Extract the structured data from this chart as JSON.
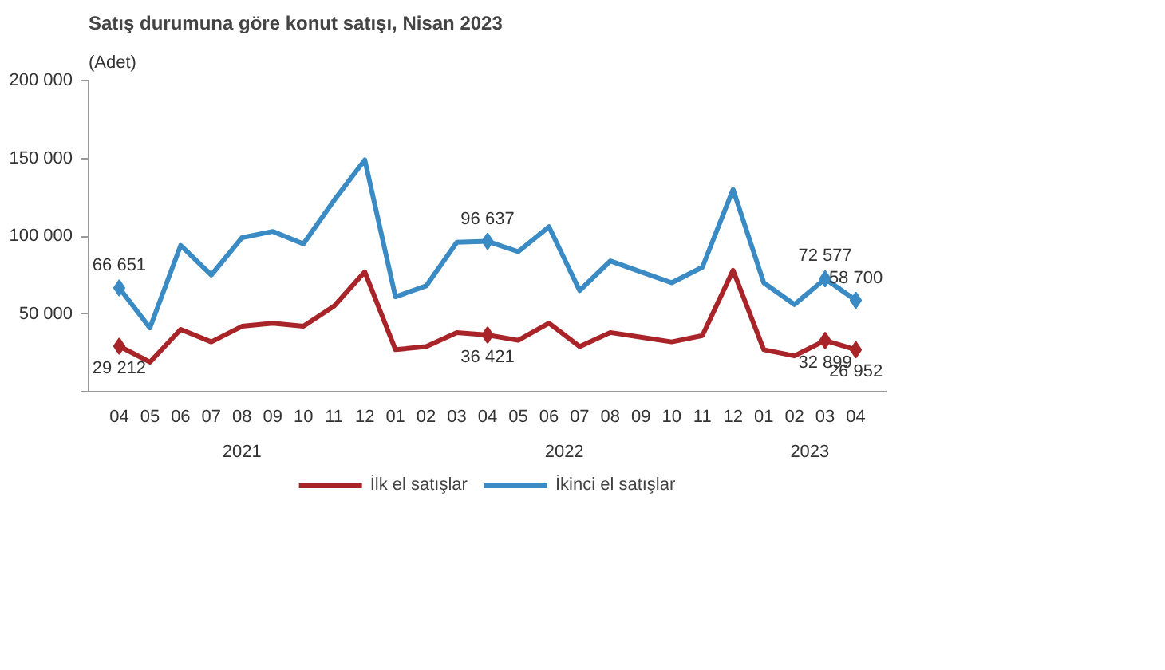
{
  "chart_data": {
    "type": "line",
    "title": "Satış durumuna göre konut satışı, Nisan 2023",
    "ylabel": "(Adet)",
    "categories": [
      "04",
      "05",
      "06",
      "07",
      "08",
      "09",
      "10",
      "11",
      "12",
      "01",
      "02",
      "03",
      "04",
      "05",
      "06",
      "07",
      "08",
      "09",
      "10",
      "11",
      "12",
      "01",
      "02",
      "03",
      "04"
    ],
    "annotations": [
      "2021",
      "2022",
      "2023"
    ],
    "ylim": [
      0,
      200000
    ],
    "yticks": [
      {
        "value": 0,
        "label": null
      },
      {
        "value": 50000,
        "label": "50 000"
      },
      {
        "value": 100000,
        "label": "100 000"
      },
      {
        "value": 150000,
        "label": "150 000"
      },
      {
        "value": 200000,
        "label": "200 000"
      }
    ],
    "series": [
      {
        "name": "İlk el satışlar",
        "color": "#a82428",
        "values": [
          29212,
          19000,
          40000,
          32000,
          42000,
          44000,
          42000,
          55000,
          77000,
          27000,
          29000,
          38000,
          36421,
          33000,
          44000,
          29000,
          38000,
          35000,
          32000,
          36000,
          78000,
          27000,
          23000,
          32899,
          26952
        ],
        "value_labels": [
          "29 212",
          null,
          null,
          null,
          null,
          null,
          null,
          null,
          null,
          null,
          null,
          null,
          "36 421",
          null,
          null,
          null,
          null,
          null,
          null,
          null,
          null,
          null,
          null,
          "32 899",
          "26 952"
        ]
      },
      {
        "name": "İkinci el satışlar",
        "color": "#3a8ac4",
        "values": [
          66651,
          41000,
          94000,
          75000,
          99000,
          103000,
          95000,
          123000,
          149000,
          61000,
          68000,
          96000,
          96637,
          90000,
          106000,
          65000,
          84000,
          77000,
          70000,
          80000,
          130000,
          70000,
          56000,
          72577,
          58700
        ],
        "value_labels": [
          "66 651",
          null,
          null,
          null,
          null,
          null,
          null,
          null,
          null,
          null,
          null,
          null,
          "96 637",
          null,
          null,
          null,
          null,
          null,
          null,
          null,
          null,
          null,
          null,
          "72 577",
          "58 700"
        ]
      }
    ],
    "line_style": "solid",
    "legend": "bottom"
  }
}
